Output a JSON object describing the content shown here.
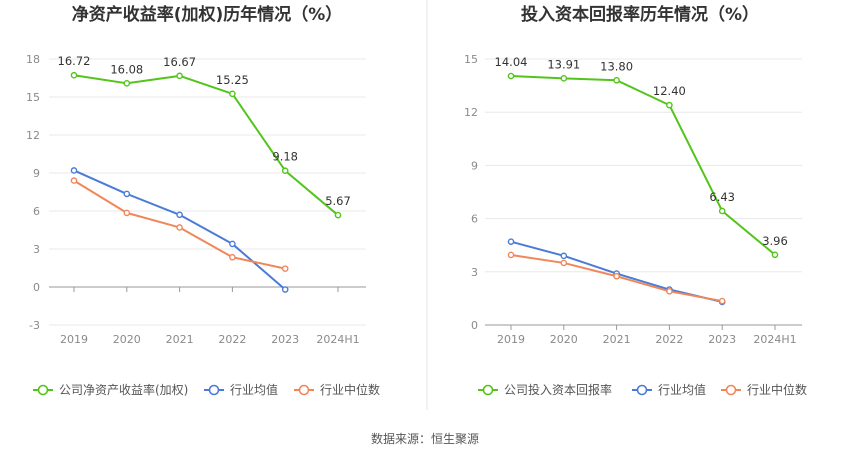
{
  "source_text": "数据来源：恒生聚源",
  "chart_data": [
    {
      "type": "line",
      "title": "净资产收益率(加权)历年情况（%）",
      "categories": [
        "2019",
        "2020",
        "2021",
        "2022",
        "2023",
        "2024H1"
      ],
      "ylim": [
        -3,
        18
      ],
      "yticks": [
        -3,
        0,
        3,
        6,
        9,
        12,
        15,
        18
      ],
      "series": [
        {
          "name": "公司净资产收益率(加权)",
          "color": "#52c41a",
          "values": [
            16.72,
            16.08,
            16.67,
            15.25,
            9.18,
            5.67
          ],
          "labels": [
            "16.72",
            "16.08",
            "16.67",
            "15.25",
            "9.18",
            "5.67"
          ]
        },
        {
          "name": "行业均值",
          "color": "#4a7bd6",
          "values": [
            9.2,
            7.35,
            5.7,
            3.4,
            -0.2,
            null
          ]
        },
        {
          "name": "行业中位数",
          "color": "#f0875a",
          "values": [
            8.4,
            5.85,
            4.7,
            2.35,
            1.45,
            null
          ]
        }
      ]
    },
    {
      "type": "line",
      "title": "投入资本回报率历年情况（%）",
      "categories": [
        "2019",
        "2020",
        "2021",
        "2022",
        "2023",
        "2024H1"
      ],
      "ylim": [
        0,
        15
      ],
      "yticks": [
        0,
        3,
        6,
        9,
        12,
        15
      ],
      "series": [
        {
          "name": "公司投入资本回报率",
          "color": "#52c41a",
          "values": [
            14.04,
            13.91,
            13.8,
            12.4,
            6.43,
            3.96
          ],
          "labels": [
            "14.04",
            "13.91",
            "13.80",
            "12.40",
            "6.43",
            "3.96"
          ]
        },
        {
          "name": "行业均值",
          "color": "#4a7bd6",
          "values": [
            4.7,
            3.9,
            2.9,
            2.0,
            1.3,
            null
          ]
        },
        {
          "name": "行业中位数",
          "color": "#f0875a",
          "values": [
            3.95,
            3.5,
            2.75,
            1.9,
            1.35,
            null
          ]
        }
      ]
    }
  ]
}
